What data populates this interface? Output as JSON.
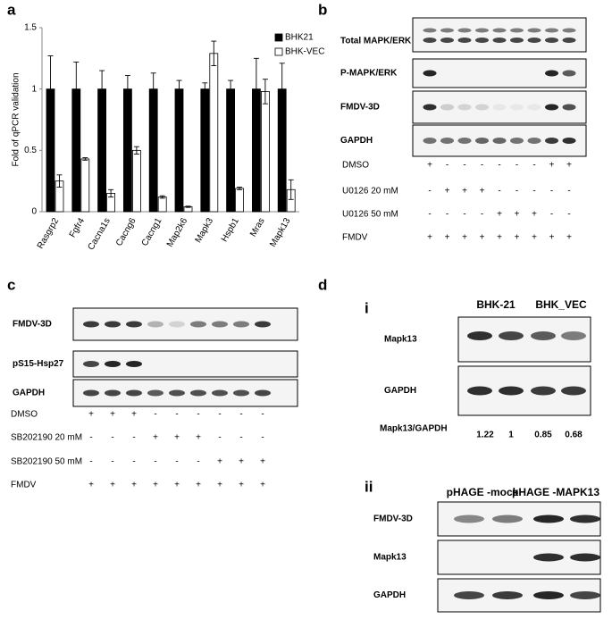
{
  "chart_data": {
    "type": "bar",
    "label": "a",
    "ylabel": "Fold of qPCR validation",
    "categories": [
      "Rasgrp2",
      "Fgfr4",
      "Cacna1s",
      "Cacng6",
      "Cacng1",
      "Map2k6",
      "Mapk3",
      "Hspb1",
      "Mras",
      "Mapk13"
    ],
    "series": [
      {
        "name": "BHK21",
        "color": "#000000",
        "values": [
          1,
          1,
          1,
          1,
          1,
          1,
          1,
          1,
          1,
          1
        ],
        "errors": [
          0.27,
          0.22,
          0.15,
          0.11,
          0.13,
          0.07,
          0.05,
          0.07,
          0.25,
          0.21
        ]
      },
      {
        "name": "BHK-VEC",
        "color": "#ffffff",
        "values": [
          0.25,
          0.43,
          0.15,
          0.5,
          0.12,
          0.04,
          1.29,
          0.19,
          0.98,
          0.18
        ],
        "errors": [
          0.05,
          0.01,
          0.03,
          0.03,
          0.01,
          0.005,
          0.1,
          0.01,
          0.1,
          0.08
        ]
      }
    ],
    "ylim": [
      0,
      1.5
    ],
    "yticks": [
      0,
      0.5,
      1,
      1.5
    ],
    "legend": "upper right"
  },
  "panel_b": {
    "label": "b",
    "rows": [
      "Total MAPK/ERK",
      "P-MAPK/ERK",
      "FMDV-3D",
      "GAPDH"
    ],
    "treatments": [
      {
        "name": "DMSO",
        "signs": [
          "+",
          "-",
          "-",
          "-",
          "-",
          "-",
          "-",
          "+",
          "+"
        ]
      },
      {
        "name": "U0126 20 mM",
        "signs": [
          "-",
          "+",
          "+",
          "+",
          "-",
          "-",
          "-",
          "-",
          "-"
        ]
      },
      {
        "name": "U0126 50 mM",
        "signs": [
          "-",
          "-",
          "-",
          "-",
          "+",
          "+",
          "+",
          "-",
          "-"
        ]
      },
      {
        "name": "FMDV",
        "signs": [
          "+",
          "+",
          "+",
          "+",
          "+",
          "+",
          "+",
          "+",
          "+"
        ]
      }
    ]
  },
  "panel_c": {
    "label": "c",
    "rows": [
      "FMDV-3D",
      "pS15-Hsp27",
      "GAPDH"
    ],
    "treatments": [
      {
        "name": "DMSO",
        "signs": [
          "+",
          "+",
          "+",
          "-",
          "-",
          "-",
          "-",
          "-",
          "-"
        ]
      },
      {
        "name": "SB202190 20 mM",
        "signs": [
          "-",
          "-",
          "-",
          "+",
          "+",
          "+",
          "-",
          "-",
          "-"
        ]
      },
      {
        "name": "SB202190 50 mM",
        "signs": [
          "-",
          "-",
          "-",
          "-",
          "-",
          "-",
          "+",
          "+",
          "+"
        ]
      },
      {
        "name": "FMDV",
        "signs": [
          "+",
          "+",
          "+",
          "+",
          "+",
          "+",
          "+",
          "+",
          "+"
        ]
      }
    ]
  },
  "panel_d": {
    "label": "d",
    "i": {
      "label": "i",
      "groups": [
        "BHK-21",
        "BHK_VEC"
      ],
      "rows": [
        "Mapk13",
        "GAPDH"
      ],
      "ratio_label": "Mapk13/GAPDH",
      "ratios": [
        1.22,
        1,
        0.85,
        0.68
      ]
    },
    "ii": {
      "label": "ii",
      "groups": [
        "pHAGE -mock",
        "pHAGE -MAPK13"
      ],
      "rows": [
        "FMDV-3D",
        "Mapk13",
        "GAPDH"
      ]
    }
  }
}
